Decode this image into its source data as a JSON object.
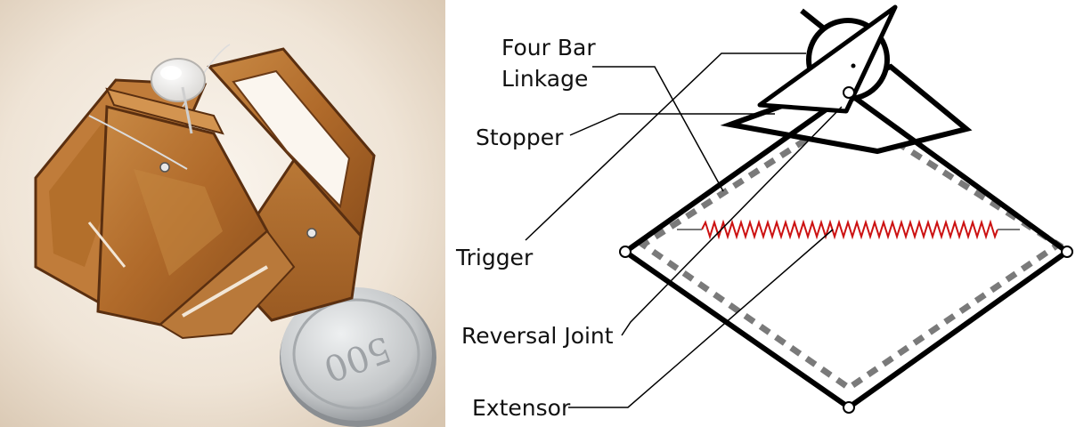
{
  "photo": {
    "coin_text": "500"
  },
  "labels": {
    "four_bar_line1": "Four Bar",
    "four_bar_line2": "Linkage",
    "stopper": "Stopper",
    "trigger": "Trigger",
    "reversal_joint": "Reversal Joint",
    "extensor": "Extensor"
  },
  "colors": {
    "frame": "#000000",
    "dashed_outline": "#7a7a7a",
    "spring": "#cc1111",
    "card_body": "#b86f2c",
    "card_edge": "#5a2f10",
    "coin": "#c9ccce"
  }
}
